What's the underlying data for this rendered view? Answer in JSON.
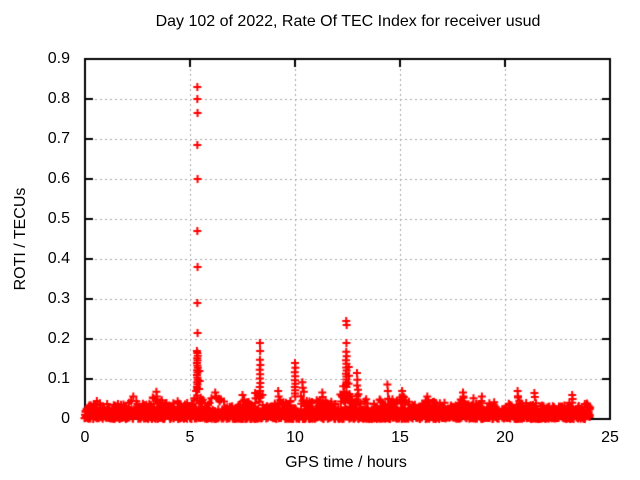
{
  "chart_data": {
    "type": "scatter",
    "title": "Day 102 of 2022, Rate Of TEC Index for receiver usud",
    "xlabel": "GPS time / hours",
    "ylabel": "ROTI / TECUs",
    "xlim": [
      0,
      25
    ],
    "ylim": [
      0,
      0.9
    ],
    "xticks": [
      0,
      5,
      10,
      15,
      20,
      25
    ],
    "yticks": [
      0,
      0.1,
      0.2,
      0.3,
      0.4,
      0.5,
      0.6,
      0.7,
      0.8,
      0.9
    ],
    "grid": true,
    "legend_position": "none",
    "marker": {
      "shape": "plus",
      "color": "#ff0000",
      "size": 9
    },
    "grid_color": "#a6a6a6",
    "border_color": "#000000",
    "background": "#ffffff",
    "data_x_start": 0,
    "data_x_end": 24.05,
    "baseline_band_top": 0.026,
    "outlier_points": [
      [
        5.35,
        0.83
      ],
      [
        5.35,
        0.8
      ],
      [
        5.36,
        0.765
      ],
      [
        5.35,
        0.685
      ],
      [
        5.36,
        0.6
      ],
      [
        5.35,
        0.47
      ],
      [
        5.36,
        0.38
      ],
      [
        5.35,
        0.29
      ],
      [
        5.36,
        0.215
      ],
      [
        5.33,
        0.17
      ],
      [
        5.35,
        0.165
      ],
      [
        5.37,
        0.158
      ],
      [
        5.34,
        0.152
      ],
      [
        5.36,
        0.146
      ],
      [
        5.33,
        0.14
      ],
      [
        5.35,
        0.134
      ],
      [
        5.37,
        0.128
      ],
      [
        5.34,
        0.122
      ],
      [
        5.36,
        0.116
      ],
      [
        5.33,
        0.11
      ],
      [
        5.35,
        0.104
      ],
      [
        5.37,
        0.098
      ],
      [
        5.34,
        0.092
      ],
      [
        5.36,
        0.086
      ],
      [
        5.33,
        0.08
      ],
      [
        5.35,
        0.075
      ],
      [
        5.45,
        0.12
      ],
      [
        5.46,
        0.095
      ],
      [
        5.44,
        0.075
      ],
      [
        5.29,
        0.07
      ],
      [
        8.33,
        0.19
      ],
      [
        8.34,
        0.17
      ],
      [
        8.33,
        0.148
      ],
      [
        8.35,
        0.135
      ],
      [
        8.32,
        0.123
      ],
      [
        8.34,
        0.112
      ],
      [
        8.33,
        0.101
      ],
      [
        8.35,
        0.09
      ],
      [
        8.32,
        0.08
      ],
      [
        8.34,
        0.07
      ],
      [
        8.33,
        0.062
      ],
      [
        8.1,
        0.065
      ],
      [
        8.12,
        0.052
      ],
      [
        8.45,
        0.06
      ],
      [
        10.0,
        0.14
      ],
      [
        10.02,
        0.128
      ],
      [
        9.99,
        0.117
      ],
      [
        10.01,
        0.107
      ],
      [
        10.0,
        0.097
      ],
      [
        10.02,
        0.088
      ],
      [
        9.99,
        0.08
      ],
      [
        10.01,
        0.072
      ],
      [
        10.0,
        0.064
      ],
      [
        10.35,
        0.092
      ],
      [
        10.37,
        0.078
      ],
      [
        10.42,
        0.068
      ],
      [
        12.44,
        0.245
      ],
      [
        12.46,
        0.235
      ],
      [
        12.45,
        0.19
      ],
      [
        12.44,
        0.168
      ],
      [
        12.46,
        0.157
      ],
      [
        12.43,
        0.147
      ],
      [
        12.45,
        0.138
      ],
      [
        12.44,
        0.129
      ],
      [
        12.46,
        0.121
      ],
      [
        12.43,
        0.113
      ],
      [
        12.45,
        0.106
      ],
      [
        12.44,
        0.099
      ],
      [
        12.46,
        0.092
      ],
      [
        12.43,
        0.086
      ],
      [
        12.45,
        0.08
      ],
      [
        12.56,
        0.13
      ],
      [
        12.57,
        0.108
      ],
      [
        12.55,
        0.088
      ],
      [
        12.3,
        0.082
      ],
      [
        12.33,
        0.068
      ],
      [
        12.95,
        0.115
      ],
      [
        12.97,
        0.098
      ],
      [
        12.96,
        0.084
      ],
      [
        13.0,
        0.073
      ],
      [
        13.02,
        0.062
      ],
      [
        2.3,
        0.056
      ],
      [
        3.4,
        0.068
      ],
      [
        3.42,
        0.056
      ],
      [
        6.2,
        0.066
      ],
      [
        6.24,
        0.056
      ],
      [
        7.5,
        0.06
      ],
      [
        9.2,
        0.07
      ],
      [
        9.22,
        0.056
      ],
      [
        11.3,
        0.066
      ],
      [
        11.32,
        0.055
      ],
      [
        14.4,
        0.086
      ],
      [
        14.42,
        0.07
      ],
      [
        15.1,
        0.07
      ],
      [
        15.12,
        0.058
      ],
      [
        16.3,
        0.056
      ],
      [
        18.0,
        0.066
      ],
      [
        18.02,
        0.056
      ],
      [
        18.5,
        0.052
      ],
      [
        18.9,
        0.056
      ],
      [
        20.6,
        0.07
      ],
      [
        20.62,
        0.057
      ],
      [
        21.4,
        0.065
      ],
      [
        21.42,
        0.055
      ],
      [
        23.2,
        0.06
      ],
      [
        23.22,
        0.05
      ]
    ],
    "baseline_envelope": [
      [
        0,
        0.035
      ],
      [
        0.4,
        0.042
      ],
      [
        0.7,
        0.05
      ],
      [
        1.0,
        0.04
      ],
      [
        1.4,
        0.035
      ],
      [
        1.8,
        0.042
      ],
      [
        2.3,
        0.05
      ],
      [
        2.7,
        0.038
      ],
      [
        3.0,
        0.045
      ],
      [
        3.4,
        0.06
      ],
      [
        3.8,
        0.04
      ],
      [
        4.3,
        0.048
      ],
      [
        4.7,
        0.036
      ],
      [
        5.0,
        0.05
      ],
      [
        5.3,
        0.07
      ],
      [
        5.5,
        0.055
      ],
      [
        5.8,
        0.05
      ],
      [
        6.1,
        0.06
      ],
      [
        6.4,
        0.055
      ],
      [
        6.8,
        0.035
      ],
      [
        7.2,
        0.04
      ],
      [
        7.6,
        0.05
      ],
      [
        8.0,
        0.045
      ],
      [
        8.3,
        0.065
      ],
      [
        8.6,
        0.045
      ],
      [
        9.0,
        0.04
      ],
      [
        9.3,
        0.05
      ],
      [
        9.7,
        0.038
      ],
      [
        10.0,
        0.065
      ],
      [
        10.3,
        0.06
      ],
      [
        10.6,
        0.045
      ],
      [
        11.0,
        0.05
      ],
      [
        11.3,
        0.055
      ],
      [
        11.7,
        0.045
      ],
      [
        12.0,
        0.05
      ],
      [
        12.45,
        0.085
      ],
      [
        12.7,
        0.06
      ],
      [
        13.0,
        0.065
      ],
      [
        13.4,
        0.05
      ],
      [
        13.8,
        0.045
      ],
      [
        14.1,
        0.05
      ],
      [
        14.4,
        0.06
      ],
      [
        14.8,
        0.045
      ],
      [
        15.1,
        0.06
      ],
      [
        15.5,
        0.045
      ],
      [
        16.0,
        0.042
      ],
      [
        16.4,
        0.05
      ],
      [
        16.8,
        0.04
      ],
      [
        17.2,
        0.045
      ],
      [
        17.6,
        0.04
      ],
      [
        18.0,
        0.055
      ],
      [
        18.4,
        0.048
      ],
      [
        18.9,
        0.05
      ],
      [
        19.3,
        0.04
      ],
      [
        19.7,
        0.045
      ],
      [
        20.1,
        0.04
      ],
      [
        20.6,
        0.055
      ],
      [
        21.0,
        0.042
      ],
      [
        21.4,
        0.05
      ],
      [
        21.9,
        0.038
      ],
      [
        22.4,
        0.042
      ],
      [
        22.8,
        0.038
      ],
      [
        23.2,
        0.048
      ],
      [
        23.6,
        0.038
      ],
      [
        24.0,
        0.04
      ],
      [
        24.05,
        0.035
      ]
    ]
  }
}
